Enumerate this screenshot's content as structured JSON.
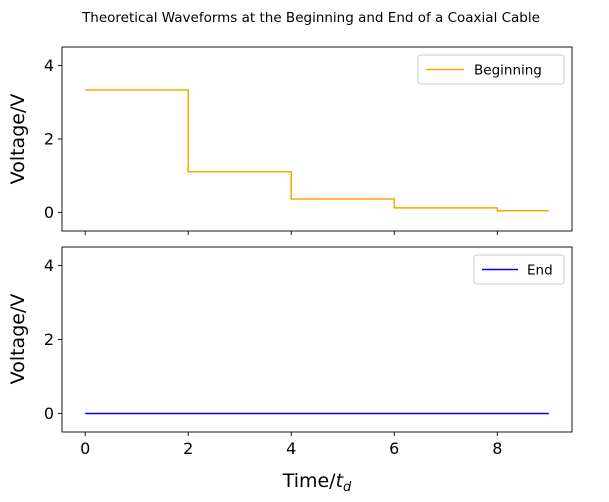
{
  "chart_data": {
    "title": "Theoretical Waveforms at the Beginning and End of a Coaxial Cable",
    "xlabel": "Time/",
    "xlabel_sub": "d",
    "xlabel_italic": "t",
    "xlim": [
      -0.45,
      9.45
    ],
    "xticks": [
      0,
      2,
      4,
      6,
      8
    ],
    "grid": false,
    "panels": [
      {
        "type": "line",
        "step": true,
        "ylabel": "Voltage/V",
        "ylim": [
          -0.5,
          4.5
        ],
        "yticks": [
          0,
          2,
          4
        ],
        "legend_position": "top-right",
        "show_xtick_labels": false,
        "series": [
          {
            "name": "Beginning",
            "color": "#ffa500",
            "x": [
              0,
              2,
              2,
              4,
              4,
              6,
              6,
              8,
              8,
              9
            ],
            "y": [
              3.33,
              3.33,
              1.11,
              1.11,
              0.37,
              0.37,
              0.13,
              0.13,
              0.05,
              0.05
            ]
          }
        ]
      },
      {
        "type": "line",
        "step": true,
        "ylabel": "Voltage/V",
        "ylim": [
          -0.5,
          4.5
        ],
        "yticks": [
          0,
          2,
          4
        ],
        "legend_position": "top-right",
        "show_xtick_labels": true,
        "series": [
          {
            "name": "End",
            "color": "#0000ff",
            "x": [
              0,
              9
            ],
            "y": [
              0,
              0
            ]
          }
        ]
      }
    ]
  }
}
